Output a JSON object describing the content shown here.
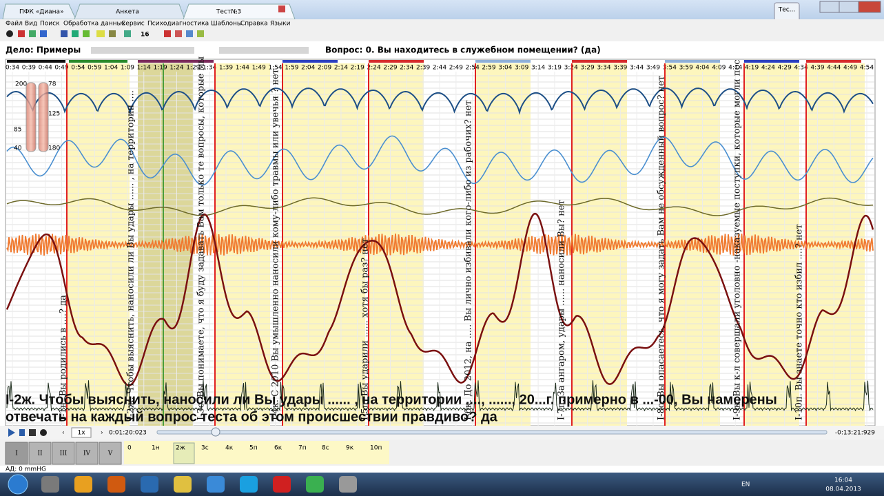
{
  "window": {
    "tabs": [
      "ПФК «Диана»",
      "Анкета",
      "Тест№3"
    ],
    "thumbnail": "Тес..."
  },
  "menu": [
    "Файл",
    "Вид",
    "Поиск",
    "Обработка данных",
    "Сервис",
    "Психодиагностика",
    "Шаблоны",
    "Справка",
    "Языки"
  ],
  "toolbar": {
    "font_size": "16"
  },
  "header": {
    "case": "Дело: Примеры",
    "question": "Вопрос: 0. Вы находитесь в служебном помещении? (да)"
  },
  "time_ticks": [
    "0:34",
    "0:39",
    "0:44",
    "0:49",
    "0:54",
    "0:59",
    "1:04",
    "1:09",
    "1:14",
    "1:19",
    "1:24",
    "1:29",
    "1:34",
    "1:39",
    "1:44",
    "1:49",
    "1:54",
    "1:59",
    "2:04",
    "2:09",
    "2:14",
    "2:19",
    "2:24",
    "2:29",
    "2:34",
    "2:39",
    "2:44",
    "2:49",
    "2:54",
    "2:59",
    "3:04",
    "3:09",
    "3:14",
    "3:19",
    "3:24",
    "3:29",
    "3:34",
    "3:39",
    "3:44",
    "3:49",
    "3:54",
    "3:59",
    "4:04",
    "4:09",
    "4:14",
    "4:19",
    "4:24",
    "4:29",
    "4:34",
    "4:39",
    "4:44",
    "4:49",
    "4:54"
  ],
  "gauge": [
    "200",
    "78",
    "125",
    "85",
    "180",
    "40"
  ],
  "questions": [
    "I-1н. Вы родились в ....? да",
    "I-2ж. Чтобы выяснить, наносили ли Вы удары ...... , на территории ....",
    "I-3с. Вы понимаете, что я буду задавать Вам только те вопросы, которые мы",
    "I-4к. С 2010 Вы умышленно наносили кому-либо травмы или увечья ? нет",
    "I-5п. Вы ударили ...... хотя бы раз? нет",
    "I-6к. До 2012, на ..... Вы лично избивали кого-либо из рабочих? нет",
    "I-7п. За ангаром, удары ...... наносили Вы? нет",
    "I-8с. Вы опасаетесь, что я могу задать Вам не обсужденный вопрос? нет",
    "I-9к. Вы к-л совершали уголовно -наказуемые поступки, которые могли пос",
    "I-10п. Вы знаете точно кто избил ....? нет"
  ],
  "current_question": [
    "I-2ж. Чтобы выяснить, наносили ли Вы удары ...... , на территории ...., ......, 20...г. примерно в ...-00, Вы намерены",
    "отвечать на каждый вопрос теста об этом происшествии правдиво? да"
  ],
  "player": {
    "speed": "1x",
    "position": "0:01:20:023",
    "remaining": "-0:13:21:929"
  },
  "parts": [
    "I",
    "II",
    "III",
    "IV",
    "V"
  ],
  "codes": [
    "0",
    "1н",
    "2ж",
    "3с",
    "4к",
    "5п",
    "6к",
    "7п",
    "8с",
    "9к",
    "10п"
  ],
  "status": "АД: 0 mmHG",
  "taskbar": {
    "lang": "EN",
    "time": "16:04",
    "date": "08.04.2013"
  }
}
